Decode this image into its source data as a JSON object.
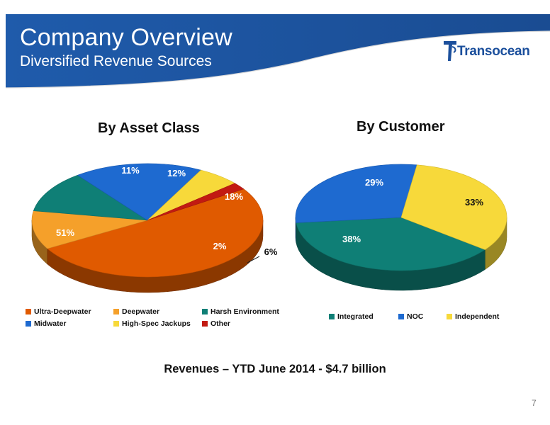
{
  "header": {
    "title": "Company Overview",
    "subtitle": "Diversified Revenue Sources",
    "brand_color": "#1e56a0"
  },
  "logo": {
    "text": "Transocean",
    "color": "#1b4f9c"
  },
  "chart_data": [
    {
      "type": "pie",
      "title": "By Asset Class",
      "legend_position": "bottom",
      "slices": [
        {
          "name": "Ultra-Deepwater",
          "value": 51,
          "label": "51%",
          "color": "#e05a00"
        },
        {
          "name": "Deepwater",
          "value": 11,
          "label": "11%",
          "color": "#f5a02a"
        },
        {
          "name": "Harsh Environment",
          "value": 12,
          "label": "12%",
          "color": "#0f7f76"
        },
        {
          "name": "Midwater",
          "value": 18,
          "label": "18%",
          "color": "#1e6ad0"
        },
        {
          "name": "High-Spec Jackups",
          "value": 6,
          "label": "6%",
          "color": "#f7d93a"
        },
        {
          "name": "Other",
          "value": 2,
          "label": "2%",
          "color": "#c21a12"
        }
      ]
    },
    {
      "type": "pie",
      "title": "By Customer",
      "legend_position": "bottom",
      "slices": [
        {
          "name": "Integrated",
          "value": 38,
          "label": "38%",
          "color": "#0f7f76"
        },
        {
          "name": "NOC",
          "value": 29,
          "label": "29%",
          "color": "#1e6ad0"
        },
        {
          "name": "Independent",
          "value": 33,
          "label": "33%",
          "color": "#f7d93a"
        }
      ]
    }
  ],
  "footer": {
    "note": "Revenues – YTD June 2014 - $4.7 billion",
    "page_number": "7"
  }
}
